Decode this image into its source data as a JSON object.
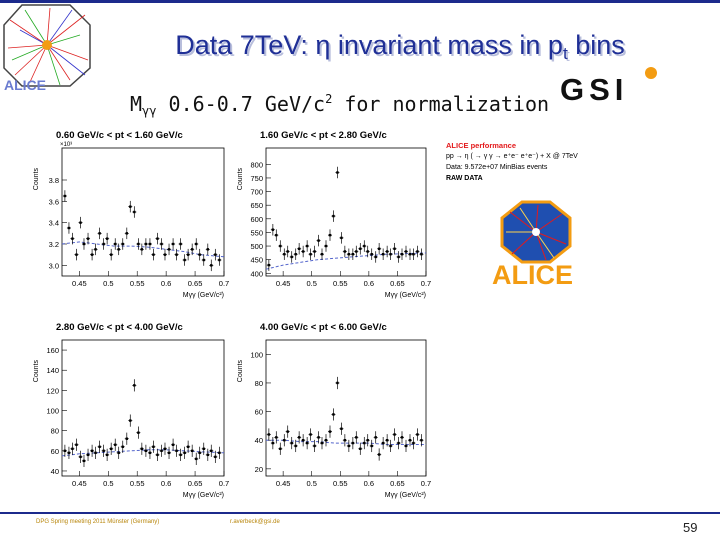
{
  "slide": {
    "title_main": "Data 7TeV: η invariant mass in p",
    "title_sub": "t",
    "title_end": " bins",
    "subtitle_pre": "M",
    "subtitle_sub": "γγ",
    "subtitle_mid": " 0.6-0.7 GeV/c",
    "subtitle_sup": "2",
    "subtitle_end": " for normalization",
    "footer_left": "DPG Spring meeting 2011  Münster (Germany)",
    "footer_mid": "r.averbeck@gsi.de",
    "page_number": "59"
  },
  "logos": {
    "top_left_text": "ALICE",
    "gsi_text": "GSI",
    "alice_logo_text": "ALICE"
  },
  "legend": {
    "line1": "ALICE performance",
    "line2": "pp → η ( → γ γ → e⁺e⁻ e⁺e⁻) + X @ 7TeV",
    "line3": "Data: 9.572e+07 MinBias events",
    "line4": "RAW DATA"
  },
  "colors": {
    "title": "#1f2f96",
    "data": "#000000",
    "background_fit": "#5566cc",
    "alice_orange": "#f39c12",
    "alice_red": "#e31a1c"
  },
  "chart_data": [
    {
      "type": "scatter",
      "title": "0.60 GeV/c < pt < 1.60 GeV/c",
      "xlabel": "Mγγ (GeV/c²)",
      "ylabel": "Counts",
      "xlim": [
        0.42,
        0.7
      ],
      "ylim": [
        2.9,
        4.1
      ],
      "multiplier": "×10³",
      "xticks": [
        "0.45",
        "0.5",
        "0.55",
        "0.6",
        "0.65",
        "0.7"
      ],
      "yticks": [
        "3.0",
        "3.2",
        "3.4",
        "3.6",
        "3.8"
      ],
      "series": [
        {
          "name": "data",
          "x": [
            0.425,
            0.432,
            0.438,
            0.445,
            0.452,
            0.458,
            0.465,
            0.472,
            0.478,
            0.485,
            0.492,
            0.498,
            0.505,
            0.512,
            0.518,
            0.525,
            0.532,
            0.538,
            0.545,
            0.552,
            0.558,
            0.565,
            0.572,
            0.578,
            0.585,
            0.592,
            0.598,
            0.605,
            0.612,
            0.618,
            0.625,
            0.632,
            0.638,
            0.645,
            0.652,
            0.658,
            0.665,
            0.672,
            0.678,
            0.685,
            0.692
          ],
          "y": [
            3.65,
            3.35,
            3.25,
            3.1,
            3.4,
            3.2,
            3.25,
            3.1,
            3.15,
            3.3,
            3.2,
            3.25,
            3.1,
            3.2,
            3.15,
            3.2,
            3.3,
            3.55,
            3.5,
            3.2,
            3.15,
            3.2,
            3.2,
            3.1,
            3.25,
            3.2,
            3.1,
            3.15,
            3.2,
            3.1,
            3.2,
            3.05,
            3.1,
            3.15,
            3.2,
            3.1,
            3.05,
            3.15,
            3.0,
            3.1,
            3.05
          ]
        },
        {
          "name": "background",
          "x": [
            0.42,
            0.45,
            0.48,
            0.51,
            0.54,
            0.57,
            0.6,
            0.63,
            0.66,
            0.7
          ],
          "y": [
            3.2,
            3.22,
            3.2,
            3.18,
            3.18,
            3.17,
            3.15,
            3.13,
            3.1,
            3.08
          ]
        }
      ]
    },
    {
      "type": "scatter",
      "title": "1.60 GeV/c < pt < 2.80 GeV/c",
      "xlabel": "Mγγ (GeV/c²)",
      "ylabel": "Counts",
      "xlim": [
        0.42,
        0.7
      ],
      "ylim": [
        390,
        860
      ],
      "xticks": [
        "0.45",
        "0.5",
        "0.55",
        "0.6",
        "0.65",
        "0.7"
      ],
      "yticks": [
        "400",
        "450",
        "500",
        "550",
        "600",
        "650",
        "700",
        "750",
        "800"
      ],
      "series": [
        {
          "name": "data",
          "x": [
            0.425,
            0.432,
            0.438,
            0.445,
            0.452,
            0.458,
            0.465,
            0.472,
            0.478,
            0.485,
            0.492,
            0.498,
            0.505,
            0.512,
            0.518,
            0.525,
            0.532,
            0.538,
            0.545,
            0.552,
            0.558,
            0.565,
            0.572,
            0.578,
            0.585,
            0.592,
            0.598,
            0.605,
            0.612,
            0.618,
            0.625,
            0.632,
            0.638,
            0.645,
            0.652,
            0.658,
            0.665,
            0.672,
            0.678,
            0.685,
            0.692
          ],
          "y": [
            430,
            560,
            540,
            500,
            470,
            480,
            460,
            470,
            490,
            480,
            500,
            470,
            480,
            520,
            470,
            500,
            540,
            610,
            770,
            530,
            480,
            470,
            470,
            480,
            490,
            500,
            480,
            470,
            460,
            490,
            470,
            480,
            470,
            490,
            460,
            470,
            480,
            470,
            470,
            480,
            470
          ]
        },
        {
          "name": "background",
          "x": [
            0.42,
            0.45,
            0.48,
            0.51,
            0.54,
            0.57,
            0.6,
            0.63,
            0.66,
            0.7
          ],
          "y": [
            415,
            430,
            440,
            450,
            455,
            460,
            465,
            470,
            472,
            475
          ]
        }
      ]
    },
    {
      "type": "scatter",
      "title": "2.80 GeV/c < pt < 4.00 GeV/c",
      "xlabel": "Mγγ (GeV/c²)",
      "ylabel": "Counts",
      "xlim": [
        0.42,
        0.7
      ],
      "ylim": [
        35,
        170
      ],
      "xticks": [
        "0.45",
        "0.5",
        "0.55",
        "0.6",
        "0.65",
        "0.7"
      ],
      "yticks": [
        "40",
        "60",
        "80",
        "100",
        "120",
        "140",
        "160"
      ],
      "series": [
        {
          "name": "data",
          "x": [
            0.425,
            0.432,
            0.438,
            0.445,
            0.452,
            0.458,
            0.465,
            0.472,
            0.478,
            0.485,
            0.492,
            0.498,
            0.505,
            0.512,
            0.518,
            0.525,
            0.532,
            0.538,
            0.545,
            0.552,
            0.558,
            0.565,
            0.572,
            0.578,
            0.585,
            0.592,
            0.598,
            0.605,
            0.612,
            0.618,
            0.625,
            0.632,
            0.638,
            0.645,
            0.652,
            0.658,
            0.665,
            0.672,
            0.678,
            0.685,
            0.692
          ],
          "y": [
            60,
            58,
            62,
            66,
            54,
            50,
            56,
            60,
            58,
            64,
            60,
            56,
            62,
            66,
            58,
            64,
            72,
            90,
            125,
            78,
            62,
            60,
            58,
            64,
            56,
            60,
            62,
            58,
            66,
            60,
            56,
            58,
            64,
            60,
            52,
            58,
            62,
            56,
            60,
            54,
            58
          ]
        },
        {
          "name": "background",
          "x": [
            0.42,
            0.45,
            0.48,
            0.51,
            0.54,
            0.57,
            0.6,
            0.63,
            0.66,
            0.7
          ],
          "y": [
            55,
            57,
            58,
            59,
            60,
            61,
            61,
            60,
            59,
            58
          ]
        }
      ]
    },
    {
      "type": "scatter",
      "title": "4.00 GeV/c < pt < 6.00 GeV/c",
      "xlabel": "Mγγ (GeV/c²)",
      "ylabel": "Counts",
      "xlim": [
        0.42,
        0.7
      ],
      "ylim": [
        15,
        110
      ],
      "xticks": [
        "0.45",
        "0.5",
        "0.55",
        "0.6",
        "0.65",
        "0.7"
      ],
      "yticks": [
        "20",
        "40",
        "60",
        "80",
        "100"
      ],
      "series": [
        {
          "name": "data",
          "x": [
            0.425,
            0.432,
            0.438,
            0.445,
            0.452,
            0.458,
            0.465,
            0.472,
            0.478,
            0.485,
            0.492,
            0.498,
            0.505,
            0.512,
            0.518,
            0.525,
            0.532,
            0.538,
            0.545,
            0.552,
            0.558,
            0.565,
            0.572,
            0.578,
            0.585,
            0.592,
            0.598,
            0.605,
            0.612,
            0.618,
            0.625,
            0.632,
            0.638,
            0.645,
            0.652,
            0.658,
            0.665,
            0.672,
            0.678,
            0.685,
            0.692
          ],
          "y": [
            44,
            38,
            42,
            34,
            40,
            46,
            38,
            36,
            42,
            40,
            38,
            44,
            36,
            42,
            38,
            40,
            46,
            58,
            80,
            48,
            40,
            36,
            38,
            42,
            34,
            38,
            40,
            36,
            42,
            30,
            38,
            40,
            36,
            44,
            38,
            42,
            36,
            40,
            38,
            44,
            40
          ]
        },
        {
          "name": "background",
          "x": [
            0.42,
            0.45,
            0.48,
            0.51,
            0.54,
            0.57,
            0.6,
            0.63,
            0.66,
            0.7
          ],
          "y": [
            40,
            40,
            39,
            39,
            38,
            38,
            38,
            37,
            37,
            37
          ]
        }
      ]
    }
  ]
}
